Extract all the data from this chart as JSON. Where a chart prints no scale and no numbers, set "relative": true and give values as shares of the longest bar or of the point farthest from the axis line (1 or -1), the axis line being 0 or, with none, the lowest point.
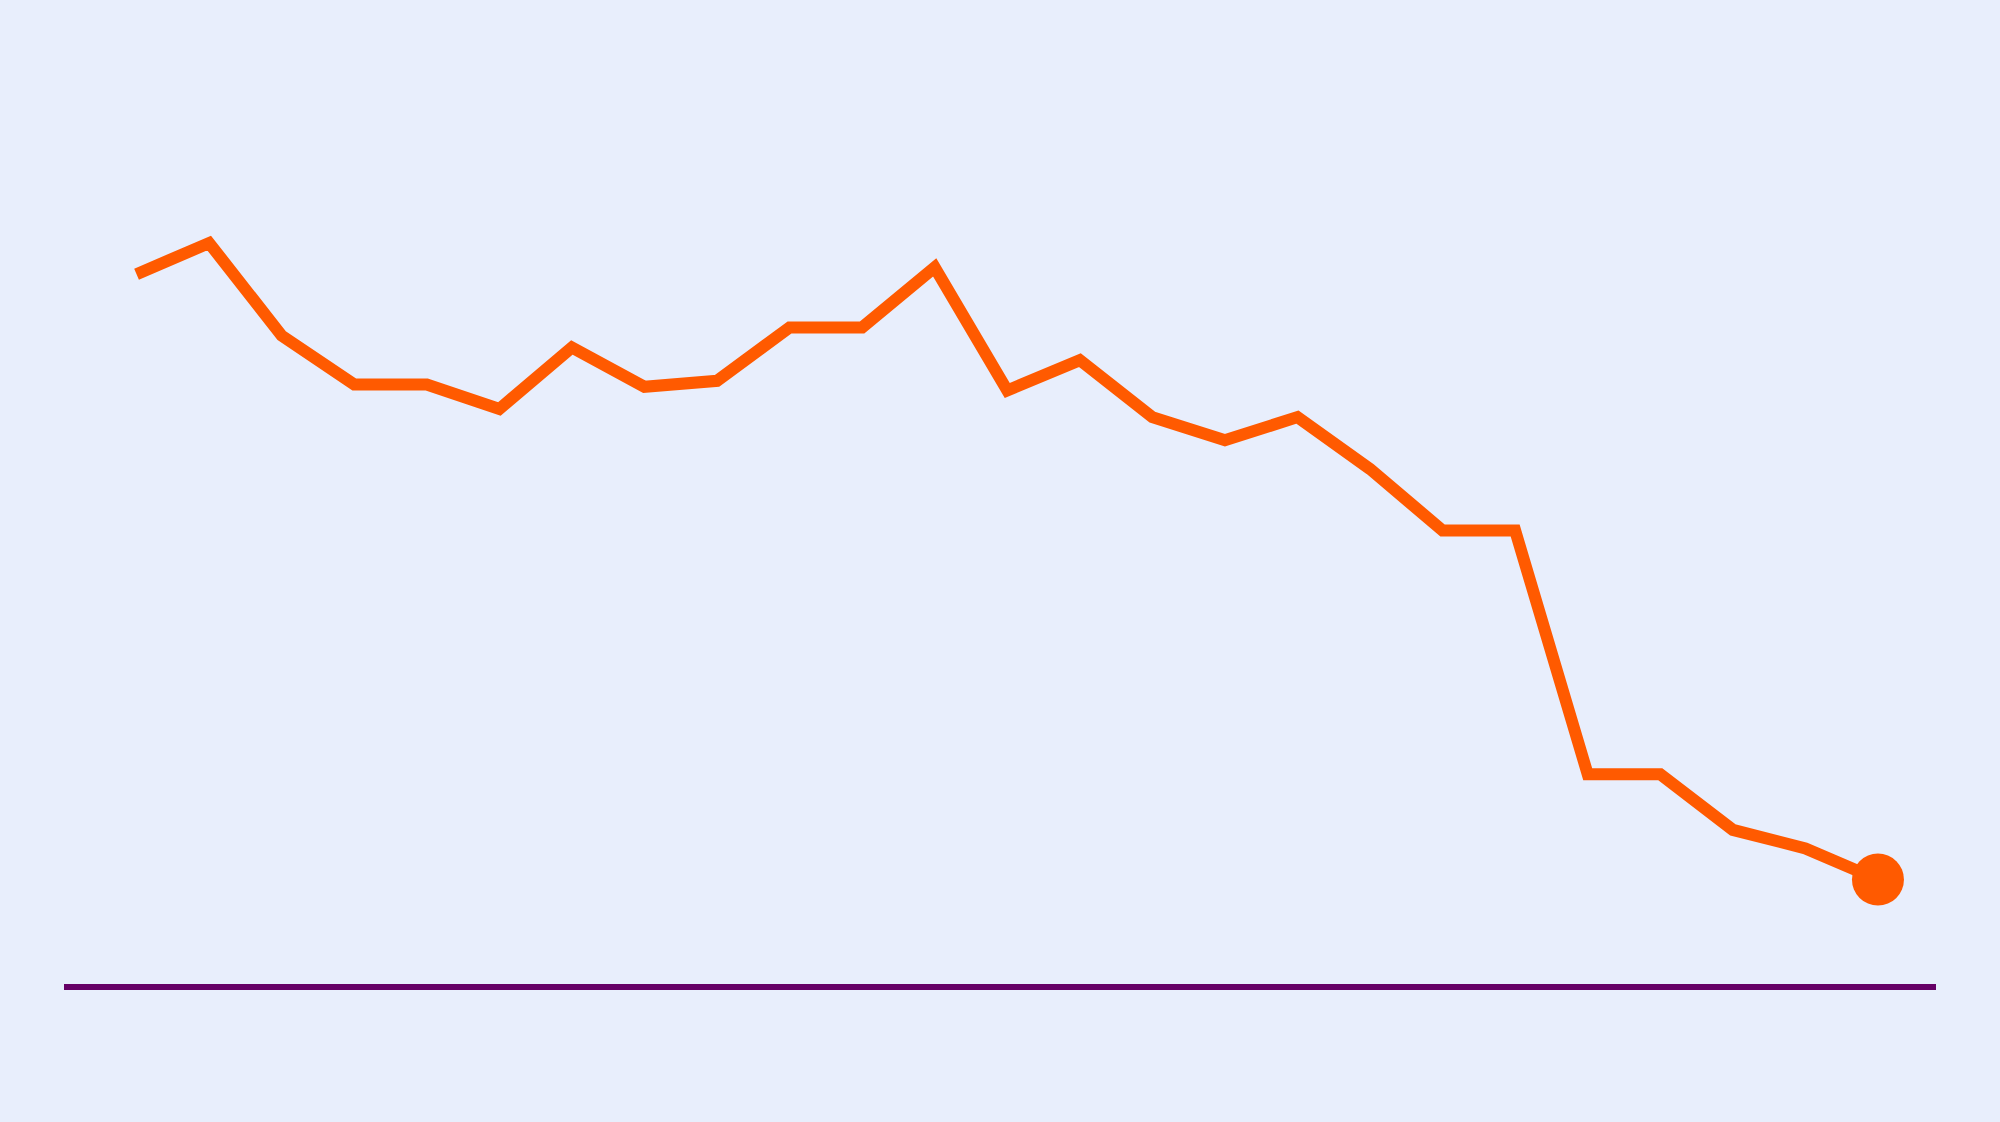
{
  "chart_data": {
    "type": "line",
    "relative": true,
    "categories": [
      null,
      null,
      null,
      null,
      null,
      null,
      null,
      null,
      null,
      null,
      null,
      null,
      null,
      null,
      null,
      null,
      null,
      null,
      null,
      null,
      null,
      null,
      null,
      null,
      null
    ],
    "series": [
      {
        "color": "#ff5a00",
        "values": [
          0.958,
          1,
          0.875,
          0.809,
          0.809,
          0.776,
          0.859,
          0.806,
          0.814,
          0.886,
          0.886,
          0.967,
          0.801,
          0.842,
          0.765,
          0.734,
          0.765,
          0.695,
          0.612,
          0.612,
          0.283,
          0.283,
          0.208,
          0.183,
          0.141
        ]
      }
    ],
    "line_style": "solid"
  }
}
